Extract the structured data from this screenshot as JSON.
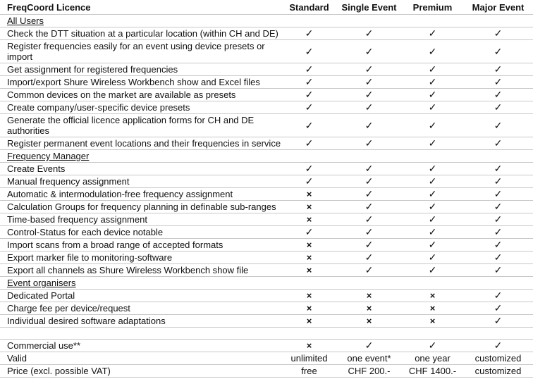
{
  "table": {
    "header": [
      "FreqCoord Licence",
      "Standard",
      "Single Event",
      "Premium",
      "Major Event"
    ],
    "rows": [
      [
        "All Users"
      ],
      [
        "Check the DTT situation at a particular location (within CH and DE)",
        "✓",
        "✓",
        "✓",
        "✓"
      ],
      [
        "Register frequencies easily for an event using device presets or import",
        "✓",
        "✓",
        "✓",
        "✓"
      ],
      [
        "Get assignment for registered frequencies",
        "✓",
        "✓",
        "✓",
        "✓"
      ],
      [
        "Import/export Shure Wireless Workbench show and Excel files",
        "✓",
        "✓",
        "✓",
        "✓"
      ],
      [
        "Common devices on the market are available as presets",
        "✓",
        "✓",
        "✓",
        "✓"
      ],
      [
        "Create company/user-specific device presets",
        "✓",
        "✓",
        "✓",
        "✓"
      ],
      [
        "Generate the official licence application forms for CH and DE authorities",
        "✓",
        "✓",
        "✓",
        "✓"
      ],
      [
        "Register permanent event locations and their frequencies in service",
        "✓",
        "✓",
        "✓",
        "✓"
      ],
      [
        "Frequency Manager"
      ],
      [
        "Create Events",
        "✓",
        "✓",
        "✓",
        "✓"
      ],
      [
        "Manual frequency assignment",
        "✓",
        "✓",
        "✓",
        "✓"
      ],
      [
        "Automatic & intermodulation-free frequency assignment",
        "×",
        "✓",
        "✓",
        "✓"
      ],
      [
        "Calculation Groups for frequency planning in definable sub-ranges",
        "×",
        "✓",
        "✓",
        "✓"
      ],
      [
        "Time-based frequency assignment",
        "×",
        "✓",
        "✓",
        "✓"
      ],
      [
        "Control-Status for each device notable",
        "✓",
        "✓",
        "✓",
        "✓"
      ],
      [
        "Import scans from a broad range of accepted formats",
        "×",
        "✓",
        "✓",
        "✓"
      ],
      [
        "Export marker file to monitoring-software",
        "×",
        "✓",
        "✓",
        "✓"
      ],
      [
        "Export all channels as Shure Wireless Workbench show file",
        "×",
        "✓",
        "✓",
        "✓"
      ],
      [
        "Event organisers"
      ],
      [
        "Dedicated Portal",
        "×",
        "×",
        "×",
        "✓"
      ],
      [
        "Charge fee per device/request",
        "×",
        "×",
        "×",
        "✓"
      ],
      [
        "Individual desired software adaptations",
        "×",
        "×",
        "×",
        "✓"
      ],
      [],
      [
        "Commercial use**",
        "×",
        "✓",
        "✓",
        "✓"
      ],
      [
        "Valid",
        "unlimited",
        "one event*",
        "one year",
        "customized"
      ],
      [
        "Price (excl. possible VAT)",
        "free",
        "CHF 200.-",
        "CHF 1400.-",
        "customized"
      ]
    ]
  }
}
